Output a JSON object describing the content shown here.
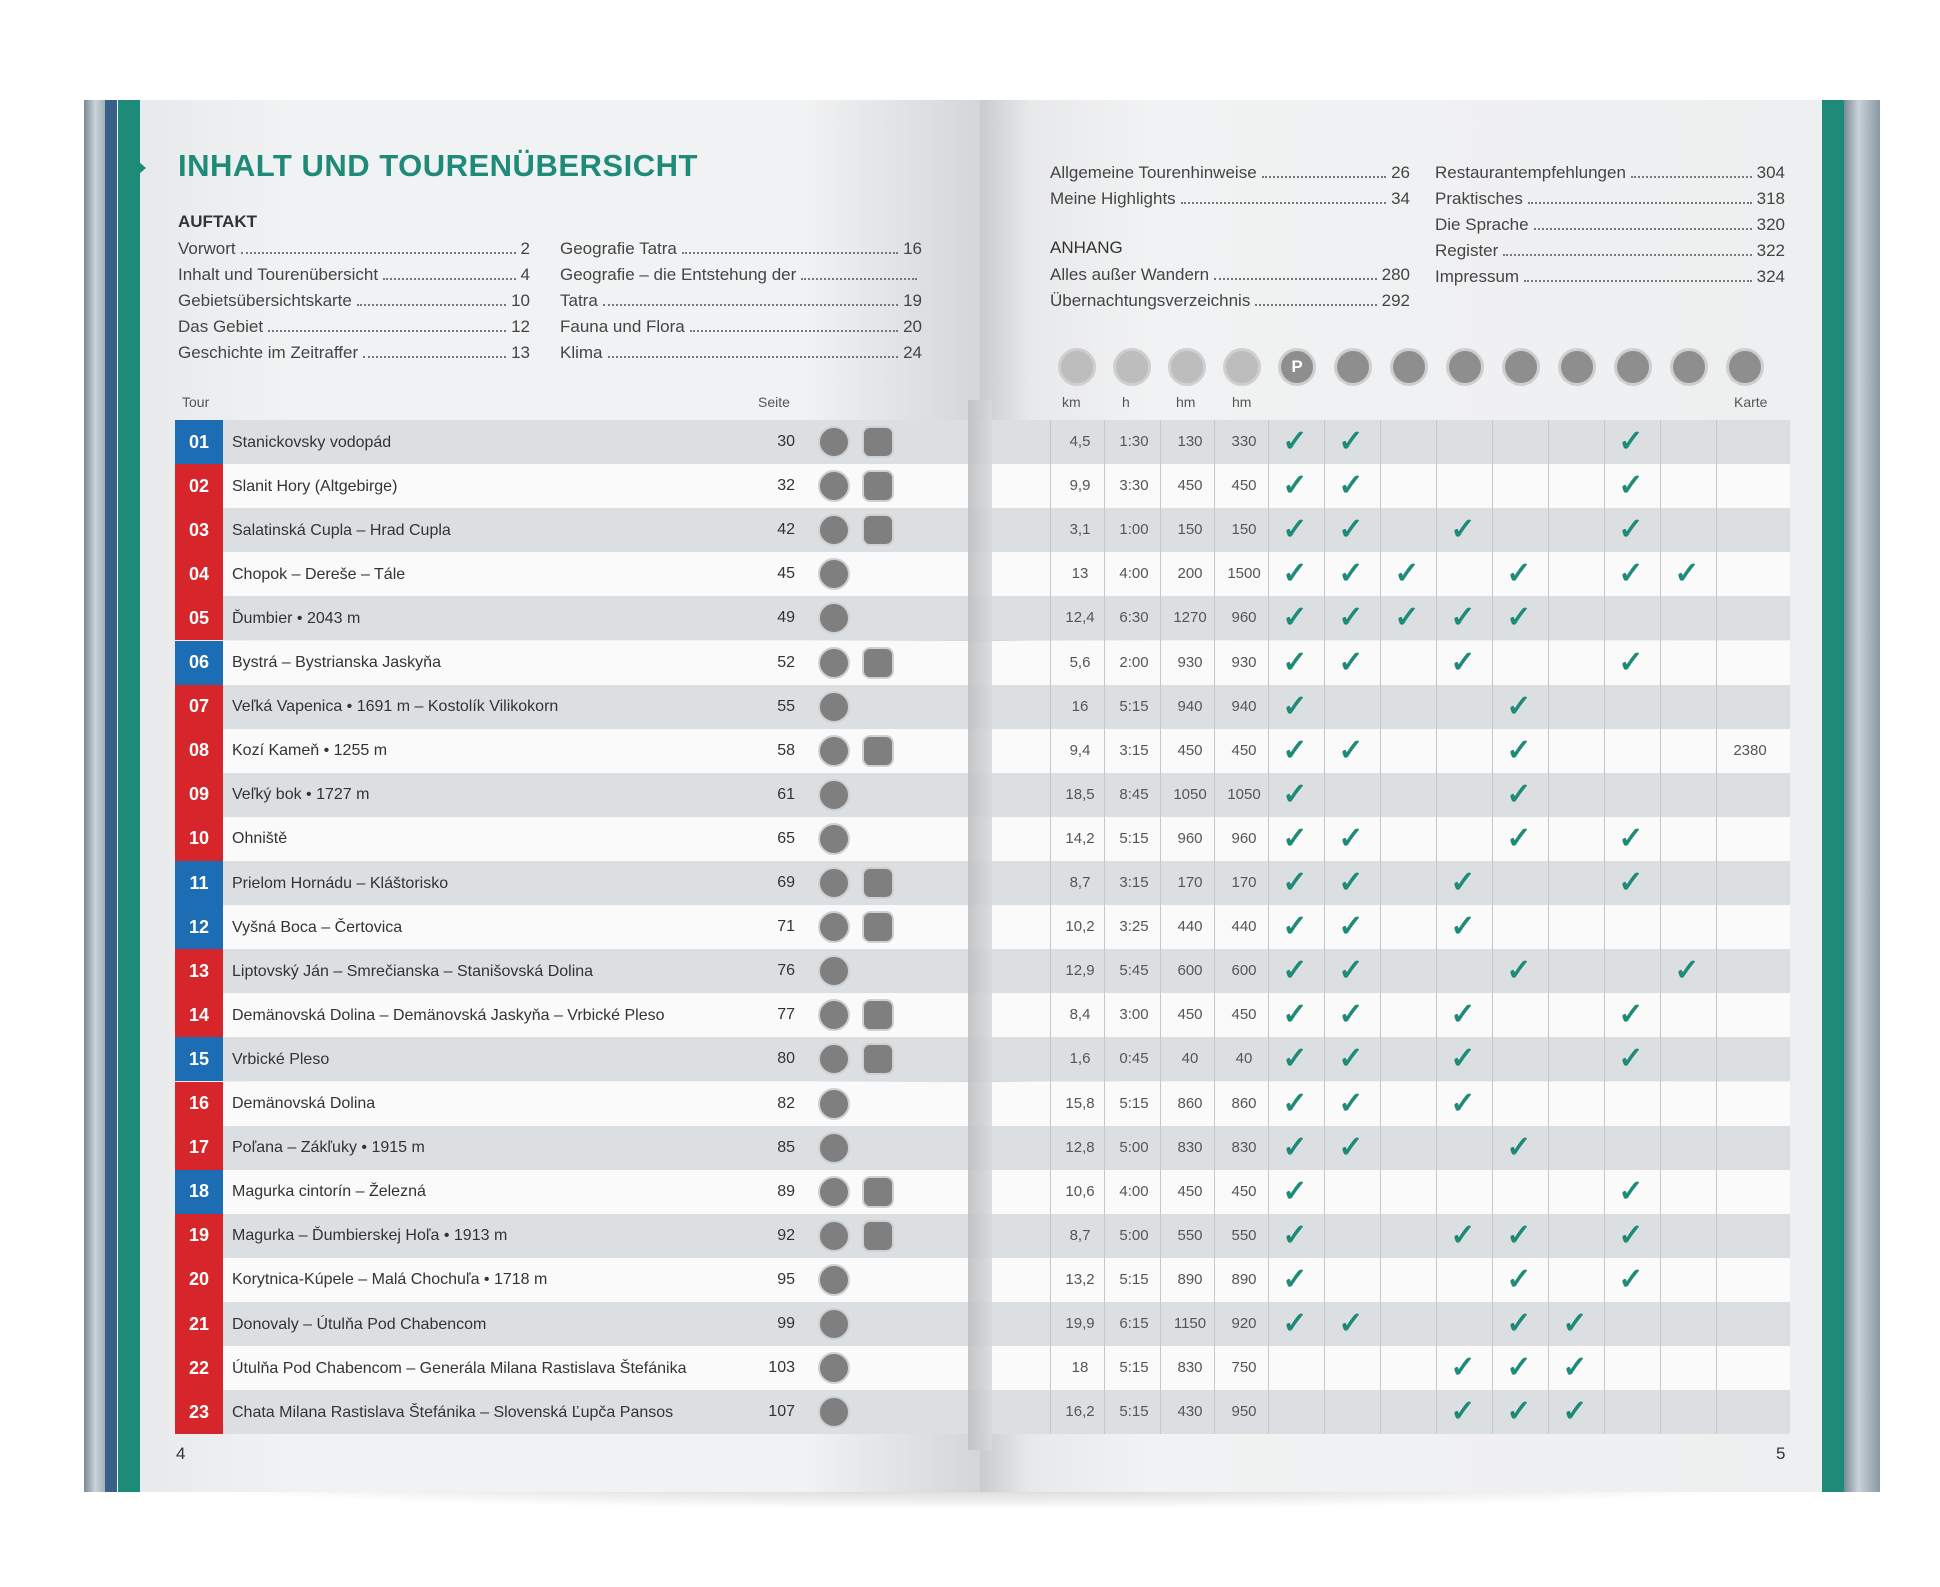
{
  "title": "INHALT UND TOURENÜBERSICHT",
  "toc": {
    "auftakt_heading": "AUFTAKT",
    "col1": [
      {
        "text": "Vorwort",
        "page": "2"
      },
      {
        "text": "Inhalt und Tourenübersicht",
        "page": "4"
      },
      {
        "text": "Gebietsübersichtskarte",
        "page": "10"
      },
      {
        "text": "Das Gebiet",
        "page": "12"
      },
      {
        "text": "Geschichte im Zeitraffer",
        "page": "13"
      }
    ],
    "col2": [
      {
        "text": "Geografie Tatra",
        "page": "16"
      },
      {
        "text": "Geografie – die Entstehung der",
        "page": ""
      },
      {
        "text": "Tatra",
        "page": "19"
      },
      {
        "text": "Fauna und Flora",
        "page": "20"
      },
      {
        "text": "Klima",
        "page": "24"
      }
    ],
    "col3": [
      {
        "text": "Allgemeine Tourenhinweise",
        "page": "26"
      },
      {
        "text": "Meine Highlights",
        "page": "34"
      }
    ],
    "anhang_heading": "ANHANG",
    "col3b": [
      {
        "text": "Alles außer Wandern",
        "page": "280"
      },
      {
        "text": "Übernachtungsverzeichnis",
        "page": "292"
      }
    ],
    "col4": [
      {
        "text": "Restaurantempfehlungen",
        "page": "304"
      },
      {
        "text": "Praktisches",
        "page": "318"
      },
      {
        "text": "Die Sprache",
        "page": "320"
      },
      {
        "text": "Register",
        "page": "322"
      },
      {
        "text": "Impressum",
        "page": "324"
      }
    ]
  },
  "headers": {
    "tour": "Tour",
    "seite": "Seite",
    "km": "km",
    "h": "h",
    "hm_up": "hm",
    "hm_down": "hm",
    "karte": "Karte"
  },
  "icon_row": [
    "route-icon",
    "ascent-icon",
    "descent-icon",
    "difficulty-icon",
    "parking-icon",
    "bus-icon",
    "train-icon",
    "cable-car-icon",
    "hut-icon",
    "refreshment-icon",
    "family-icon",
    "bike-icon",
    "map-icon"
  ],
  "icon_letters": [
    "",
    "",
    "",
    "",
    "P",
    "",
    "",
    "",
    "",
    "",
    "",
    "",
    ""
  ],
  "colors": {
    "red": "#d7262b",
    "blue": "#1c6db3",
    "green": "#1e8a78"
  },
  "tours": [
    {
      "n": "01",
      "c": "blue",
      "name": "Stanickovsky vodopád",
      "seite": "30",
      "fam": true,
      "km": "4,5",
      "h": "1:30",
      "up": "130",
      "down": "330",
      "checks": [
        1,
        1,
        0,
        0,
        0,
        0,
        1,
        0
      ],
      "karte": ""
    },
    {
      "n": "02",
      "c": "red",
      "name": "Slanit Hory (Altgebirge)",
      "seite": "32",
      "fam": true,
      "km": "9,9",
      "h": "3:30",
      "up": "450",
      "down": "450",
      "checks": [
        1,
        1,
        0,
        0,
        0,
        0,
        1,
        0
      ],
      "karte": ""
    },
    {
      "n": "03",
      "c": "red",
      "name": "Salatinská Cupla – Hrad Cupla",
      "seite": "42",
      "fam": true,
      "km": "3,1",
      "h": "1:00",
      "up": "150",
      "down": "150",
      "checks": [
        1,
        1,
        0,
        1,
        0,
        0,
        1,
        0
      ],
      "karte": ""
    },
    {
      "n": "04",
      "c": "red",
      "name": "Chopok – Dereše – Tále",
      "seite": "45",
      "fam": false,
      "km": "13",
      "h": "4:00",
      "up": "200",
      "down": "1500",
      "checks": [
        1,
        1,
        1,
        0,
        1,
        0,
        1,
        1
      ],
      "karte": ""
    },
    {
      "n": "05",
      "c": "red",
      "name": "Ďumbier • 2043 m",
      "seite": "49",
      "fam": false,
      "km": "12,4",
      "h": "6:30",
      "up": "1270",
      "down": "960",
      "checks": [
        1,
        1,
        1,
        1,
        1,
        0,
        0,
        0
      ],
      "karte": ""
    },
    {
      "n": "06",
      "c": "blue",
      "name": "Bystrá – Bystrianska Jaskyňa",
      "seite": "52",
      "fam": true,
      "km": "5,6",
      "h": "2:00",
      "up": "930",
      "down": "930",
      "checks": [
        1,
        1,
        0,
        1,
        0,
        0,
        1,
        0
      ],
      "karte": ""
    },
    {
      "n": "07",
      "c": "red",
      "name": "Veľká Vapenica • 1691 m – Kostolík Vilikokorn",
      "seite": "55",
      "fam": false,
      "km": "16",
      "h": "5:15",
      "up": "940",
      "down": "940",
      "checks": [
        1,
        0,
        0,
        0,
        1,
        0,
        0,
        0
      ],
      "karte": ""
    },
    {
      "n": "08",
      "c": "red",
      "name": "Kozí Kameň • 1255 m",
      "seite": "58",
      "fam": true,
      "km": "9,4",
      "h": "3:15",
      "up": "450",
      "down": "450",
      "checks": [
        1,
        1,
        0,
        0,
        1,
        0,
        0,
        0
      ],
      "karte": "2380"
    },
    {
      "n": "09",
      "c": "red",
      "name": "Veľký bok • 1727 m",
      "seite": "61",
      "fam": false,
      "km": "18,5",
      "h": "8:45",
      "up": "1050",
      "down": "1050",
      "checks": [
        1,
        0,
        0,
        0,
        1,
        0,
        0,
        0
      ],
      "karte": ""
    },
    {
      "n": "10",
      "c": "red",
      "name": "Ohniště",
      "seite": "65",
      "fam": false,
      "km": "14,2",
      "h": "5:15",
      "up": "960",
      "down": "960",
      "checks": [
        1,
        1,
        0,
        0,
        1,
        0,
        1,
        0
      ],
      "karte": ""
    },
    {
      "n": "11",
      "c": "blue",
      "name": "Prielom Hornádu – Kláštorisko",
      "seite": "69",
      "fam": true,
      "km": "8,7",
      "h": "3:15",
      "up": "170",
      "down": "170",
      "checks": [
        1,
        1,
        0,
        1,
        0,
        0,
        1,
        0
      ],
      "karte": ""
    },
    {
      "n": "12",
      "c": "blue",
      "name": "Vyšná Boca – Čertovica",
      "seite": "71",
      "fam": true,
      "km": "10,2",
      "h": "3:25",
      "up": "440",
      "down": "440",
      "checks": [
        1,
        1,
        0,
        1,
        0,
        0,
        0,
        0
      ],
      "karte": ""
    },
    {
      "n": "13",
      "c": "red",
      "name": "Liptovský Ján – Smrečianska – Stanišovská Dolina",
      "seite": "76",
      "fam": false,
      "km": "12,9",
      "h": "5:45",
      "up": "600",
      "down": "600",
      "checks": [
        1,
        1,
        0,
        0,
        1,
        0,
        0,
        1
      ],
      "karte": ""
    },
    {
      "n": "14",
      "c": "red",
      "name": "Demänovská Dolina – Demänovská Jaskyňa – Vrbické Pleso",
      "seite": "77",
      "fam": true,
      "km": "8,4",
      "h": "3:00",
      "up": "450",
      "down": "450",
      "checks": [
        1,
        1,
        0,
        1,
        0,
        0,
        1,
        0
      ],
      "karte": ""
    },
    {
      "n": "15",
      "c": "blue",
      "name": "Vrbické Pleso",
      "seite": "80",
      "fam": true,
      "km": "1,6",
      "h": "0:45",
      "up": "40",
      "down": "40",
      "checks": [
        1,
        1,
        0,
        1,
        0,
        0,
        1,
        0
      ],
      "karte": ""
    },
    {
      "n": "16",
      "c": "red",
      "name": "Demänovská Dolina",
      "seite": "82",
      "fam": false,
      "km": "15,8",
      "h": "5:15",
      "up": "860",
      "down": "860",
      "checks": [
        1,
        1,
        0,
        1,
        0,
        0,
        0,
        0
      ],
      "karte": ""
    },
    {
      "n": "17",
      "c": "red",
      "name": "Poľana – Zákľuky • 1915 m",
      "seite": "85",
      "fam": false,
      "km": "12,8",
      "h": "5:00",
      "up": "830",
      "down": "830",
      "checks": [
        1,
        1,
        0,
        0,
        1,
        0,
        0,
        0
      ],
      "karte": ""
    },
    {
      "n": "18",
      "c": "blue",
      "name": "Magurka cintorín – Železná",
      "seite": "89",
      "fam": true,
      "km": "10,6",
      "h": "4:00",
      "up": "450",
      "down": "450",
      "checks": [
        1,
        0,
        0,
        0,
        0,
        0,
        1,
        0
      ],
      "karte": ""
    },
    {
      "n": "19",
      "c": "red",
      "name": "Magurka – Ďumbierskej Hoľa • 1913 m",
      "seite": "92",
      "fam": true,
      "km": "8,7",
      "h": "5:00",
      "up": "550",
      "down": "550",
      "checks": [
        1,
        0,
        0,
        1,
        1,
        0,
        1,
        0
      ],
      "karte": ""
    },
    {
      "n": "20",
      "c": "red",
      "name": "Korytnica-Kúpele – Malá Chochuľa • 1718 m",
      "seite": "95",
      "fam": false,
      "km": "13,2",
      "h": "5:15",
      "up": "890",
      "down": "890",
      "checks": [
        1,
        0,
        0,
        0,
        1,
        0,
        1,
        0
      ],
      "karte": ""
    },
    {
      "n": "21",
      "c": "red",
      "name": "Donovaly – Útulňa Pod Chabencom",
      "seite": "99",
      "fam": false,
      "km": "19,9",
      "h": "6:15",
      "up": "1150",
      "down": "920",
      "checks": [
        1,
        1,
        0,
        0,
        1,
        1,
        0,
        0
      ],
      "karte": ""
    },
    {
      "n": "22",
      "c": "red",
      "name": "Útulňa Pod Chabencom – Generála Milana Rastislava Štefánika",
      "seite": "103",
      "fam": false,
      "km": "18",
      "h": "5:15",
      "up": "830",
      "down": "750",
      "checks": [
        0,
        0,
        0,
        1,
        1,
        1,
        0,
        0
      ],
      "karte": ""
    },
    {
      "n": "23",
      "c": "red",
      "name": "Chata Milana Rastislava Štefánika – Slovenská Ľupča Pansos",
      "seite": "107",
      "fam": false,
      "km": "16,2",
      "h": "5:15",
      "up": "430",
      "down": "950",
      "checks": [
        0,
        0,
        0,
        1,
        1,
        1,
        0,
        0
      ],
      "karte": ""
    }
  ],
  "check_glyph": "✓",
  "page_left": "4",
  "page_right": "5"
}
